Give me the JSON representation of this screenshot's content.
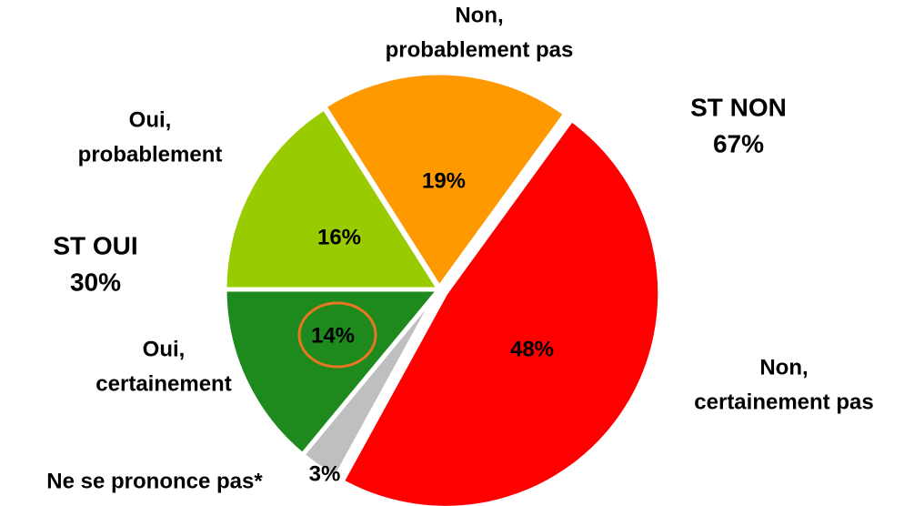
{
  "chart_data": {
    "type": "pie",
    "categories": [
      [
        "Non,",
        "certainement pas"
      ],
      [
        "Ne se prononce pas*"
      ],
      [
        "Oui,",
        "certainement"
      ],
      [
        "Oui,",
        "probablement"
      ],
      [
        "Non,",
        "probablement pas"
      ]
    ],
    "values": [
      48,
      3,
      14,
      16,
      19
    ],
    "value_labels": [
      "48%",
      "3%",
      "14%",
      "16%",
      "19%"
    ],
    "colors": [
      "#ff0000",
      "#bfbfbf",
      "#1e8a1e",
      "#99cc00",
      "#ff9900"
    ],
    "annotations": [
      {
        "lines": [
          "ST NON",
          "67%"
        ],
        "color": "#ff0000"
      },
      {
        "lines": [
          "ST OUI",
          "30%"
        ],
        "color": "#1e8a1e"
      }
    ]
  }
}
